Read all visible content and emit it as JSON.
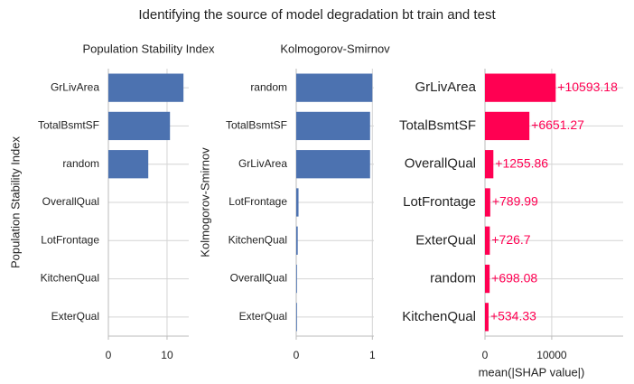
{
  "title": "Identifying the source of model degradation bt train and test",
  "chart_data": [
    {
      "type": "barh",
      "title": "Population Stability Index",
      "ylabel": "Population Stability Index",
      "categories": [
        "GrLivArea",
        "TotalBsmtSF",
        "random",
        "OverallQual",
        "LotFrontage",
        "KitchenQual",
        "ExterQual"
      ],
      "values": [
        12.8,
        10.5,
        6.8,
        0,
        0,
        0,
        0
      ],
      "color": "#4c72b0",
      "xlim": [
        0,
        13.7
      ],
      "xticks": [
        0,
        10
      ],
      "grid": true
    },
    {
      "type": "barh",
      "title": "Kolmogorov-Smirnov",
      "ylabel": "Kolmogorov-Smirnov",
      "categories": [
        "random",
        "TotalBsmtSF",
        "GrLivArea",
        "LotFrontage",
        "KitchenQual",
        "OverallQual",
        "ExterQual"
      ],
      "values": [
        1.0,
        0.97,
        0.97,
        0.03,
        0.02,
        0.01,
        0.01
      ],
      "color": "#4c72b0",
      "xlim": [
        0,
        1.02
      ],
      "xticks": [
        0,
        1
      ],
      "grid": true
    },
    {
      "type": "barh",
      "xlabel": "mean(|SHAP value|)",
      "categories": [
        "GrLivArea",
        "TotalBsmtSF",
        "OverallQual",
        "LotFrontage",
        "ExterQual",
        "random",
        "KitchenQual"
      ],
      "values": [
        10593.18,
        6651.27,
        1255.86,
        789.99,
        726.7,
        698.08,
        534.33
      ],
      "value_labels": [
        "+10593.18",
        "+6651.27",
        "+1255.86",
        "+789.99",
        "+726.7",
        "+698.08",
        "+534.33"
      ],
      "color": "#ff0052",
      "xlim": [
        0,
        20700
      ],
      "xticks": [
        0,
        10000
      ],
      "grid": true
    }
  ]
}
